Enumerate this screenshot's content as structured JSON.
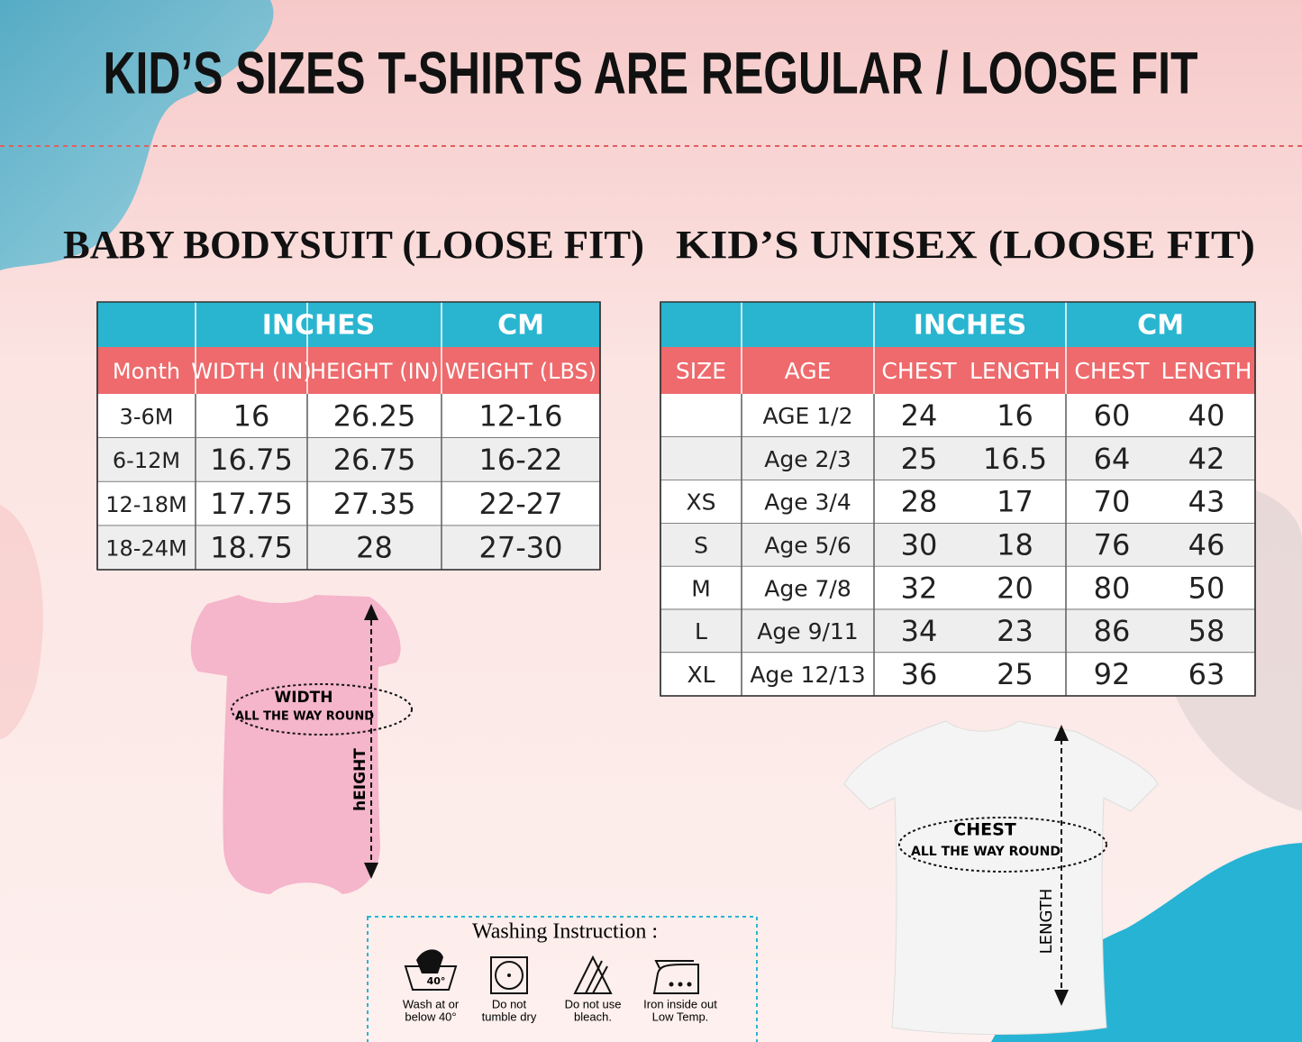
{
  "header": {
    "title": "KID’S SIZES T-SHIRTS ARE REGULAR / LOOSE FIT"
  },
  "baby": {
    "title": "BABY BODYSUIT (LOOSE FIT)",
    "groups": [
      "INCHES",
      "CM"
    ],
    "columns": [
      "Month",
      "WIDTH (IN)",
      "HEIGHT (IN)",
      "WEIGHT (LBS)"
    ],
    "rows": [
      [
        "3-6M",
        "16",
        "26.25",
        "12-16"
      ],
      [
        "6-12M",
        "16.75",
        "26.75",
        "16-22"
      ],
      [
        "12-18M",
        "17.75",
        "27.35",
        "22-27"
      ],
      [
        "18-24M",
        "18.75",
        "28",
        "27-30"
      ]
    ]
  },
  "kids": {
    "title": "KID’S UNISEX (LOOSE FIT)",
    "groups": [
      "INCHES",
      "CM"
    ],
    "columns": [
      "SIZE",
      "AGE",
      "CHEST",
      "LENGTH",
      "CHEST",
      "LENGTH"
    ],
    "rows": [
      [
        null,
        "AGE 1/2",
        "24",
        "16",
        "60",
        "40"
      ],
      [
        null,
        "Age 2/3",
        "25",
        "16.5",
        "64",
        "42"
      ],
      [
        "XS",
        "Age 3/4",
        "28",
        "17",
        "70",
        "43"
      ],
      [
        "S",
        "Age 5/6",
        "30",
        "18",
        "76",
        "46"
      ],
      [
        "M",
        "Age 7/8",
        "32",
        "20",
        "80",
        "50"
      ],
      [
        "L",
        "Age 9/11",
        "34",
        "23",
        "86",
        "58"
      ],
      [
        "XL",
        "Age 12/13",
        "36",
        "25",
        "92",
        "63"
      ]
    ]
  },
  "baby_diagram": {
    "width_label": "WIDTH",
    "width_sub": "ALL THE WAY ROUND",
    "height_label": "hEIGHT"
  },
  "kids_diagram": {
    "chest_label": "CHEST",
    "chest_sub": "ALL THE WAY ROUND",
    "length_label": "LENGTH"
  },
  "washing": {
    "title": "Washing Instruction :",
    "icon_text": "40°",
    "icons": [
      {
        "lines": [
          "Wash at or",
          "below 40°"
        ]
      },
      {
        "lines": [
          "Do  not",
          "tumble dry"
        ]
      },
      {
        "lines": [
          "Do not use",
          "bleach."
        ]
      },
      {
        "lines": [
          "Iron inside out",
          "Low Temp."
        ]
      }
    ]
  }
}
